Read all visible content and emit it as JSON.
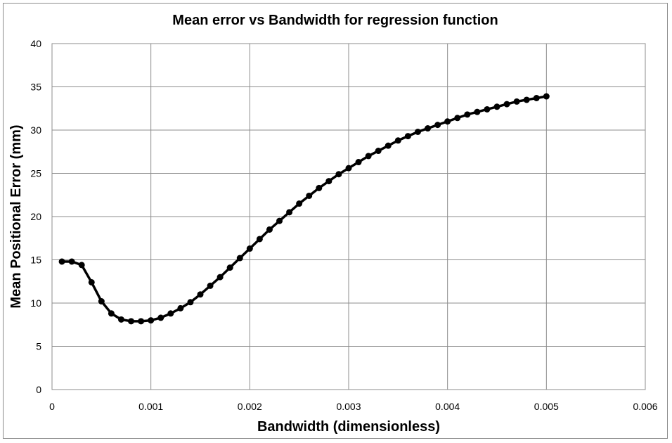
{
  "chart_data": {
    "type": "line",
    "title": "Mean error  vs Bandwidth for regression function",
    "xlabel": "Bandwidth (dimensionless)",
    "ylabel": "Mean Positional Error (mm)",
    "xlim": [
      0,
      0.006
    ],
    "ylim": [
      0,
      40
    ],
    "xticks": [
      0,
      0.001,
      0.002,
      0.003,
      0.004,
      0.005,
      0.006
    ],
    "xtick_labels": [
      "0",
      "0.001",
      "0.002",
      "0.003",
      "0.004",
      "0.005",
      "0.006"
    ],
    "yticks": [
      0,
      5,
      10,
      15,
      20,
      25,
      30,
      35,
      40
    ],
    "ytick_labels": [
      "0",
      "5",
      "10",
      "15",
      "20",
      "25",
      "30",
      "35",
      "40"
    ],
    "grid": true,
    "series": [
      {
        "color": "#000000",
        "marker": "circle",
        "x": [
          0.0001,
          0.0002,
          0.0003,
          0.0004,
          0.0005,
          0.0006,
          0.0007,
          0.0008,
          0.0009,
          0.001,
          0.0011,
          0.0012,
          0.0013,
          0.0014,
          0.0015,
          0.0016,
          0.0017,
          0.0018,
          0.0019,
          0.002,
          0.0021,
          0.0022,
          0.0023,
          0.0024,
          0.0025,
          0.0026,
          0.0027,
          0.0028,
          0.0029,
          0.003,
          0.0031,
          0.0032,
          0.0033,
          0.0034,
          0.0035,
          0.0036,
          0.0037,
          0.0038,
          0.0039,
          0.004,
          0.0041,
          0.0042,
          0.0043,
          0.0044,
          0.0045,
          0.0046,
          0.0047,
          0.0048,
          0.0049,
          0.005
        ],
        "y": [
          14.8,
          14.8,
          14.4,
          12.4,
          10.2,
          8.8,
          8.1,
          7.9,
          7.9,
          8.0,
          8.3,
          8.8,
          9.4,
          10.1,
          11.0,
          12.0,
          13.0,
          14.1,
          15.2,
          16.3,
          17.4,
          18.5,
          19.5,
          20.5,
          21.5,
          22.4,
          23.3,
          24.1,
          24.9,
          25.6,
          26.3,
          27.0,
          27.6,
          28.2,
          28.8,
          29.3,
          29.8,
          30.2,
          30.6,
          31.0,
          31.4,
          31.8,
          32.1,
          32.4,
          32.7,
          33.0,
          33.3,
          33.5,
          33.7,
          33.9
        ]
      }
    ]
  }
}
